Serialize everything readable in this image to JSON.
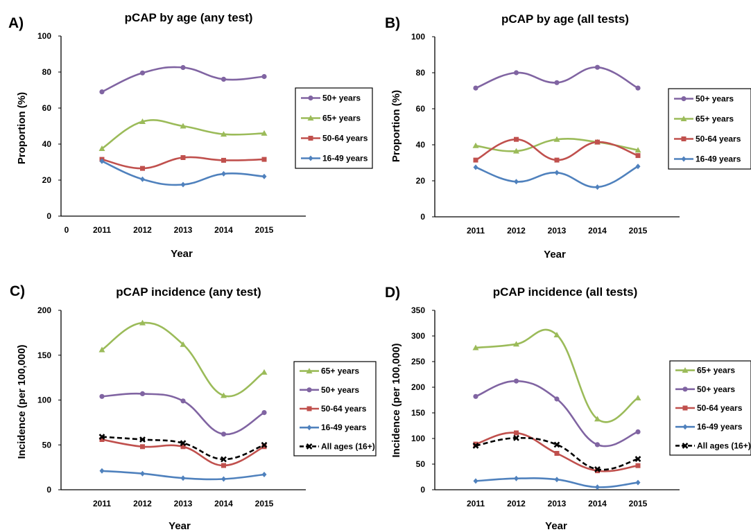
{
  "figure": {
    "panels": [
      "A)",
      "B)",
      "C)",
      "D)"
    ]
  },
  "chart_data": [
    {
      "type": "line",
      "panel": "A)",
      "title": "pCAP by age (any test)",
      "xlabel": "Year",
      "ylabel": "Proportion (%)",
      "x_tick_labels": [
        "0",
        "2011",
        "2012",
        "2013",
        "2014",
        "2015"
      ],
      "categories": [
        "2011",
        "2012",
        "2013",
        "2014",
        "2015"
      ],
      "ylim": [
        0,
        100
      ],
      "yticks": [
        0,
        20,
        40,
        60,
        80,
        100
      ],
      "grid": false,
      "legend": "right",
      "series": [
        {
          "name": "50+ years",
          "color": "#8064a2",
          "marker": "circle",
          "values": [
            69,
            79.5,
            82.5,
            76,
            77.5
          ]
        },
        {
          "name": "65+ years",
          "color": "#9bbb59",
          "marker": "triangle",
          "values": [
            37.5,
            52.5,
            50,
            45.5,
            46
          ]
        },
        {
          "name": "50-64 years",
          "color": "#c0504d",
          "marker": "square",
          "values": [
            31.5,
            26.5,
            32.5,
            31,
            31.5
          ]
        },
        {
          "name": "16-49 years",
          "color": "#4f81bd",
          "marker": "diamond",
          "values": [
            30.5,
            20.5,
            17.5,
            23.5,
            22
          ]
        }
      ]
    },
    {
      "type": "line",
      "panel": "B)",
      "title": "pCAP by age (all tests)",
      "xlabel": "Year",
      "ylabel": "Proportion (%)",
      "categories": [
        "2011",
        "2012",
        "2013",
        "2014",
        "2015"
      ],
      "ylim": [
        0,
        100
      ],
      "yticks": [
        0,
        20,
        40,
        60,
        80,
        100
      ],
      "grid": false,
      "legend": "right",
      "series": [
        {
          "name": "50+ years",
          "color": "#8064a2",
          "marker": "circle",
          "values": [
            71.5,
            80,
            74.5,
            83,
            71.5
          ]
        },
        {
          "name": "65+ years",
          "color": "#9bbb59",
          "marker": "triangle",
          "values": [
            39.5,
            36.5,
            43,
            41.5,
            37
          ]
        },
        {
          "name": "50-64 years",
          "color": "#c0504d",
          "marker": "square",
          "values": [
            31.5,
            43,
            31.5,
            41.5,
            34
          ]
        },
        {
          "name": "16-49 years",
          "color": "#4f81bd",
          "marker": "diamond",
          "values": [
            27.5,
            19.5,
            24.5,
            16.5,
            28
          ]
        }
      ]
    },
    {
      "type": "line",
      "panel": "C)",
      "title": "pCAP incidence (any test)",
      "xlabel": "Year",
      "ylabel": "Incidence (per 100,000)",
      "categories": [
        "2011",
        "2012",
        "2013",
        "2014",
        "2015"
      ],
      "ylim": [
        0,
        200
      ],
      "yticks": [
        0,
        50,
        100,
        150,
        200
      ],
      "grid": false,
      "legend": "right",
      "series": [
        {
          "name": "65+ years",
          "color": "#9bbb59",
          "marker": "triangle",
          "values": [
            156,
            186,
            162,
            105,
            131
          ]
        },
        {
          "name": "50+ years",
          "color": "#8064a2",
          "marker": "circle",
          "values": [
            104,
            107,
            99,
            62,
            86
          ]
        },
        {
          "name": "50-64 years",
          "color": "#c0504d",
          "marker": "square",
          "values": [
            56,
            48,
            48,
            27,
            48
          ]
        },
        {
          "name": "16-49 years",
          "color": "#4f81bd",
          "marker": "diamond",
          "values": [
            21,
            18,
            13,
            12,
            17
          ]
        },
        {
          "name": "All ages (16+)",
          "color": "#000000",
          "marker": "x",
          "dashed": true,
          "values": [
            59,
            56,
            52,
            34,
            50
          ]
        }
      ]
    },
    {
      "type": "line",
      "panel": "D)",
      "title": "pCAP incidence (all tests)",
      "xlabel": "Year",
      "ylabel": "Incidence (per 100,000)",
      "categories": [
        "2011",
        "2012",
        "2013",
        "2014",
        "2015"
      ],
      "ylim": [
        0,
        350
      ],
      "yticks": [
        0,
        50,
        100,
        150,
        200,
        250,
        300,
        350
      ],
      "grid": false,
      "legend": "right",
      "series": [
        {
          "name": "65+ years",
          "color": "#9bbb59",
          "marker": "triangle",
          "values": [
            277,
            284,
            302,
            138,
            179
          ]
        },
        {
          "name": "50+ years",
          "color": "#8064a2",
          "marker": "circle",
          "values": [
            182,
            212,
            177,
            88,
            113
          ]
        },
        {
          "name": "50-64 years",
          "color": "#c0504d",
          "marker": "square",
          "values": [
            89,
            111,
            71,
            37,
            47
          ]
        },
        {
          "name": "16-49 years",
          "color": "#4f81bd",
          "marker": "diamond",
          "values": [
            17,
            22,
            20,
            5,
            14
          ]
        },
        {
          "name": "All ages (16+)",
          "color": "#000000",
          "marker": "x",
          "dashed": true,
          "values": [
            86,
            101,
            88,
            40,
            60
          ]
        }
      ]
    }
  ]
}
